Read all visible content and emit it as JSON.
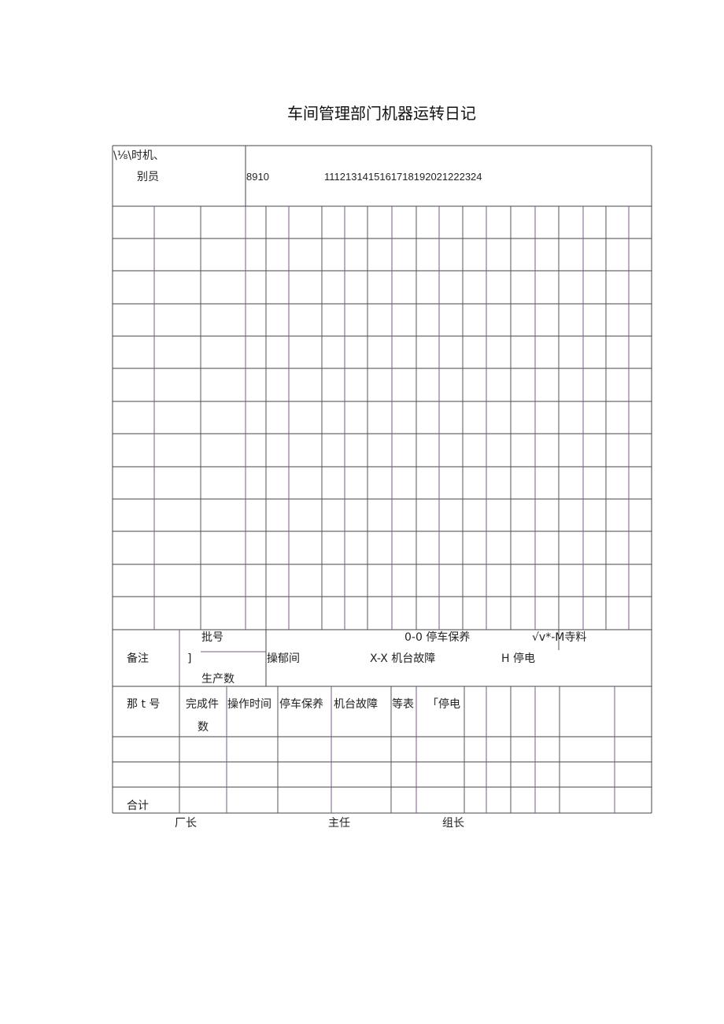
{
  "title": "车间管理部门机器运转日记",
  "header": {
    "corner_top": "\\⅛\\时机、",
    "corner_bottom": "别员",
    "hours_a": "8910",
    "hours_b": "1112131415161718192021222324"
  },
  "remarks": {
    "label": "备注",
    "bracket": "]",
    "batch_no": "批号",
    "production_qty": "生产数",
    "operation_time": "操郁间",
    "legend_stop_maint": "0-0 停车保养",
    "legend_wait_material": "√v*-M寺料",
    "legend_machine_fault": "X-X 机台故障",
    "legend_power_out": "H 停电"
  },
  "summary": {
    "headers": [
      "那 t 号",
      "完成件",
      "数",
      "操作时间",
      "停车保养",
      "机台故障",
      "等表",
      "「停电"
    ],
    "total_label": "合计"
  },
  "signatures": {
    "factory_director": "厂长",
    "supervisor": "主任",
    "team_leader": "组长"
  }
}
